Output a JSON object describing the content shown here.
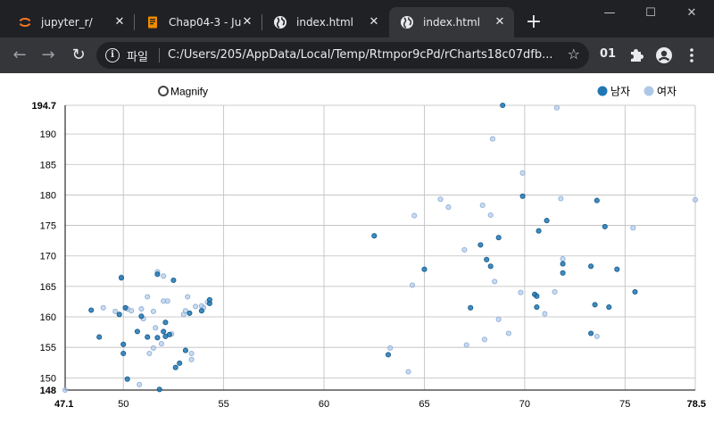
{
  "browser": {
    "tabs": [
      {
        "title": "jupyter_r/",
        "icon": "jupyter-icon",
        "active": false
      },
      {
        "title": "Chap04-3 - Ju",
        "icon": "notebook-icon",
        "active": false
      },
      {
        "title": "index.html",
        "icon": "globe-icon",
        "active": false
      },
      {
        "title": "index.html",
        "icon": "globe-icon",
        "active": true
      }
    ],
    "new_tab_label": "+",
    "window_controls": {
      "minimize": "—",
      "maximize": "☐",
      "close": "✕"
    },
    "nav": {
      "back": "←",
      "forward": "→",
      "reload": "↻"
    },
    "omnibox": {
      "site_label": "파일",
      "url": "C:/Users/205/AppData/Local/Temp/Rtmpor9cPd/rCharts18c07dfb...",
      "star": "☆"
    },
    "toolbar_badge": "01",
    "extensions_icon": "puzzle-icon",
    "profile_icon": "account-icon",
    "menu_icon": "kebab-menu-icon"
  },
  "chart_controls": {
    "magnify_label": "Magnify"
  },
  "chart_data": {
    "type": "scatter",
    "title": "",
    "xlabel": "",
    "ylabel": "",
    "xlim": [
      47.1,
      78.5
    ],
    "ylim": [
      148,
      194.7
    ],
    "x_ticks": [
      {
        "value": 47.1,
        "label": "47.1",
        "bold": true
      },
      {
        "value": 50,
        "label": "50"
      },
      {
        "value": 55,
        "label": "55"
      },
      {
        "value": 60,
        "label": "60"
      },
      {
        "value": 65,
        "label": "65"
      },
      {
        "value": 70,
        "label": "70"
      },
      {
        "value": 75,
        "label": "75"
      },
      {
        "value": 78.5,
        "label": "78.5",
        "bold": true
      }
    ],
    "y_ticks": [
      {
        "value": 148,
        "label": "148",
        "bold": true
      },
      {
        "value": 150,
        "label": "150"
      },
      {
        "value": 155,
        "label": "155"
      },
      {
        "value": 160,
        "label": "160"
      },
      {
        "value": 165,
        "label": "165"
      },
      {
        "value": 170,
        "label": "170"
      },
      {
        "value": 175,
        "label": "175"
      },
      {
        "value": 180,
        "label": "180"
      },
      {
        "value": 185,
        "label": "185"
      },
      {
        "value": 190,
        "label": "190"
      },
      {
        "value": 194.7,
        "label": "194.7",
        "bold": true
      }
    ],
    "grid": true,
    "legend_position": "top-right",
    "series": [
      {
        "name": "남자",
        "color": "#1f77b4",
        "points": [
          [
            48.4,
            161.1
          ],
          [
            48.8,
            156.7
          ],
          [
            49.8,
            160.4
          ],
          [
            49.9,
            166.4
          ],
          [
            50.0,
            154.0
          ],
          [
            50.0,
            155.5
          ],
          [
            50.1,
            161.5
          ],
          [
            50.2,
            149.8
          ],
          [
            50.7,
            157.6
          ],
          [
            50.9,
            160.1
          ],
          [
            51.2,
            156.7
          ],
          [
            51.7,
            156.6
          ],
          [
            51.7,
            167.0
          ],
          [
            51.8,
            148.1
          ],
          [
            52.0,
            157.6
          ],
          [
            52.1,
            159.1
          ],
          [
            52.1,
            156.8
          ],
          [
            52.3,
            157.1
          ],
          [
            52.5,
            166.0
          ],
          [
            52.6,
            151.7
          ],
          [
            52.8,
            152.4
          ],
          [
            53.1,
            154.5
          ],
          [
            53.3,
            160.6
          ],
          [
            53.9,
            161.0
          ],
          [
            54.3,
            162.2
          ],
          [
            54.3,
            162.8
          ],
          [
            62.5,
            173.3
          ],
          [
            63.2,
            153.8
          ],
          [
            65.0,
            167.8
          ],
          [
            67.3,
            161.5
          ],
          [
            67.8,
            171.8
          ],
          [
            68.1,
            169.4
          ],
          [
            68.3,
            168.3
          ],
          [
            68.7,
            173.0
          ],
          [
            68.9,
            194.7
          ],
          [
            69.9,
            179.8
          ],
          [
            70.5,
            163.7
          ],
          [
            70.6,
            163.4
          ],
          [
            70.6,
            161.6
          ],
          [
            70.7,
            174.1
          ],
          [
            71.1,
            175.8
          ],
          [
            71.9,
            168.7
          ],
          [
            71.9,
            167.2
          ],
          [
            73.3,
            168.3
          ],
          [
            73.3,
            157.3
          ],
          [
            73.5,
            162.0
          ],
          [
            73.6,
            179.1
          ],
          [
            74.0,
            174.8
          ],
          [
            74.2,
            161.6
          ],
          [
            74.6,
            167.8
          ],
          [
            75.5,
            164.1
          ]
        ]
      },
      {
        "name": "여자",
        "color": "#aec7e8",
        "points": [
          [
            47.1,
            148.0
          ],
          [
            49.0,
            161.5
          ],
          [
            49.6,
            160.9
          ],
          [
            49.9,
            166.5
          ],
          [
            50.2,
            161.3
          ],
          [
            50.4,
            161.0
          ],
          [
            50.8,
            148.9
          ],
          [
            50.9,
            161.3
          ],
          [
            51.0,
            159.7
          ],
          [
            51.2,
            163.3
          ],
          [
            51.3,
            154.0
          ],
          [
            51.5,
            160.9
          ],
          [
            51.5,
            154.9
          ],
          [
            51.6,
            158.2
          ],
          [
            51.7,
            167.4
          ],
          [
            51.9,
            155.6
          ],
          [
            52.0,
            162.6
          ],
          [
            52.0,
            166.7
          ],
          [
            52.2,
            162.6
          ],
          [
            52.4,
            157.2
          ],
          [
            53.0,
            160.4
          ],
          [
            53.1,
            161.0
          ],
          [
            53.2,
            163.3
          ],
          [
            53.4,
            154.0
          ],
          [
            53.4,
            153.0
          ],
          [
            53.6,
            161.7
          ],
          [
            53.9,
            161.8
          ],
          [
            54.0,
            161.5
          ],
          [
            54.2,
            162.4
          ],
          [
            63.3,
            154.9
          ],
          [
            64.2,
            151.0
          ],
          [
            64.4,
            165.2
          ],
          [
            64.5,
            176.6
          ],
          [
            65.8,
            179.3
          ],
          [
            66.2,
            178.0
          ],
          [
            67.0,
            171.0
          ],
          [
            67.1,
            155.4
          ],
          [
            67.9,
            178.3
          ],
          [
            68.0,
            156.3
          ],
          [
            68.3,
            176.7
          ],
          [
            68.4,
            189.2
          ],
          [
            68.5,
            165.8
          ],
          [
            68.7,
            159.6
          ],
          [
            69.2,
            157.3
          ],
          [
            69.8,
            164.0
          ],
          [
            69.9,
            183.6
          ],
          [
            71.0,
            160.5
          ],
          [
            71.5,
            164.1
          ],
          [
            71.6,
            194.3
          ],
          [
            71.8,
            179.4
          ],
          [
            71.9,
            169.5
          ],
          [
            73.6,
            156.8
          ],
          [
            75.4,
            174.6
          ],
          [
            78.5,
            179.2
          ]
        ]
      }
    ]
  }
}
